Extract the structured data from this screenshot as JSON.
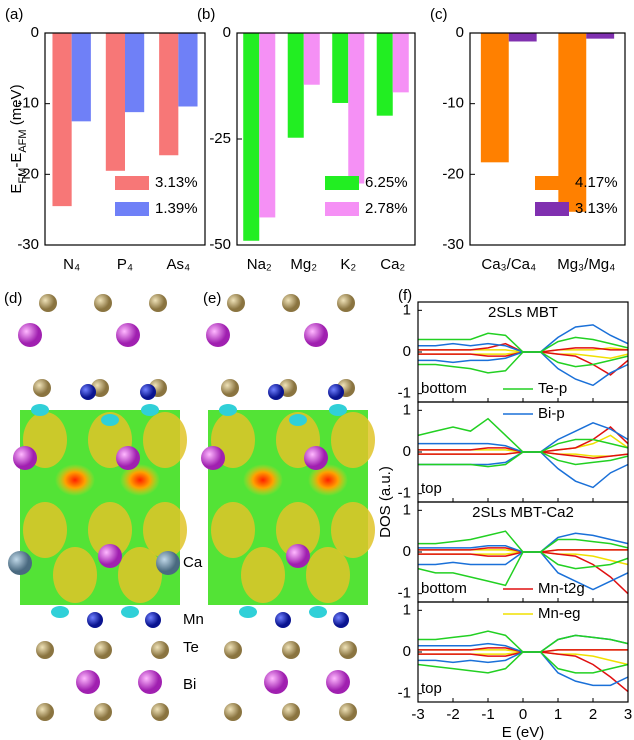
{
  "chart_data": [
    {
      "type": "bar",
      "panel_label": "(a)",
      "y_label": [
        {
          "text": "E"
        },
        {
          "text": "FM",
          "sub": true
        },
        {
          "text": "-E"
        },
        {
          "text": "AFM",
          "sub": true
        },
        {
          "text": " (meV)"
        }
      ],
      "categories": [
        "N₄",
        "P₄",
        "As₄"
      ],
      "series": [
        {
          "name": "3.13%",
          "color": "#f77777",
          "values": [
            -24.5,
            -19.5,
            -17.3
          ]
        },
        {
          "name": "1.39%",
          "color": "#6f80f7",
          "values": [
            -12.5,
            -11.2,
            -10.4
          ]
        }
      ],
      "ylim": [
        -30,
        0
      ],
      "yticks": [
        0,
        -10,
        -20,
        -30
      ]
    },
    {
      "type": "bar",
      "panel_label": "(b)",
      "categories": [
        "Na₂",
        "Mg₂",
        "K₂",
        "Ca₂"
      ],
      "series": [
        {
          "name": "6.25%",
          "color": "#22ee22",
          "values": [
            -49,
            -24.7,
            -16.5,
            -19.5
          ]
        },
        {
          "name": "2.78%",
          "color": "#f590f5",
          "values": [
            -43.5,
            -12.2,
            -35.5,
            -14
          ]
        }
      ],
      "ylim": [
        -50,
        0
      ],
      "yticks": [
        0,
        -25,
        -50
      ]
    },
    {
      "type": "bar",
      "panel_label": "(c)",
      "categories": [
        "Ca₃/Ca₄",
        "Mg₃/Mg₄"
      ],
      "series": [
        {
          "name": "4.17%",
          "color": "#ff8000",
          "values": [
            -18.3,
            -25.3
          ]
        },
        {
          "name": "3.13%",
          "color": "#8030b0",
          "values": [
            -1.2,
            -0.8
          ]
        }
      ],
      "ylim": [
        -30,
        0
      ],
      "yticks": [
        0,
        -10,
        -20,
        -30
      ]
    },
    {
      "type": "dos",
      "panel_label": "(f)",
      "x_label": "E (eV)",
      "y_label": "DOS (a.u.)",
      "x": [
        -3,
        -2.5,
        -2,
        -1.5,
        -1,
        -0.5,
        0,
        0.5,
        1,
        1.5,
        2,
        2.5,
        3
      ],
      "xlim": [
        -3,
        3
      ],
      "xticks": [
        -3,
        -2,
        -1,
        0,
        1,
        2,
        3
      ],
      "ylim": [
        -1.2,
        1.2
      ],
      "yticks": [
        1,
        0,
        -1
      ],
      "series": [
        {
          "name": "Te-p",
          "color": "#22d022"
        },
        {
          "name": "Bi-p",
          "color": "#1a70d8"
        },
        {
          "name": "Mn-t2g",
          "color": "#e01010"
        },
        {
          "name": "Mn-eg",
          "color": "#f0e000"
        }
      ],
      "panels": [
        {
          "title": "2SLs MBT",
          "position": "bottom",
          "series": [
            {
              "up": [
                0.3,
                0.3,
                0.3,
                0.3,
                0.45,
                0.4,
                0,
                0,
                0.25,
                0.35,
                0.3,
                0.2,
                0.1
              ],
              "down": [
                -0.3,
                -0.3,
                -0.35,
                -0.4,
                -0.5,
                -0.45,
                0,
                0,
                -0.25,
                -0.35,
                -0.3,
                -0.2,
                -0.1
              ]
            },
            {
              "up": [
                0.15,
                0.15,
                0.2,
                0.15,
                0.2,
                0.15,
                0,
                0,
                0.35,
                0.6,
                0.65,
                0.4,
                0.2
              ],
              "down": [
                -0.2,
                -0.2,
                -0.25,
                -0.2,
                -0.2,
                -0.15,
                0,
                0,
                -0.4,
                -0.65,
                -0.8,
                -0.5,
                -0.3
              ]
            },
            {
              "up": [
                0.05,
                0.05,
                0.05,
                0.05,
                0.1,
                0.2,
                0,
                0,
                0.05,
                0.1,
                0.1,
                0.05,
                0.05
              ],
              "down": [
                -0.05,
                -0.05,
                -0.05,
                -0.05,
                -0.1,
                -0.1,
                0,
                0,
                -0.05,
                -0.1,
                -0.3,
                -0.55,
                -0.2
              ]
            },
            {
              "up": [
                0.05,
                0.05,
                0.05,
                0.05,
                0.05,
                0.05,
                0,
                0,
                0.05,
                0.05,
                0.05,
                0.1,
                0.05
              ],
              "down": [
                -0.05,
                -0.05,
                -0.05,
                -0.05,
                -0.05,
                -0.05,
                0,
                0,
                -0.05,
                -0.05,
                -0.1,
                -0.15,
                -0.05
              ]
            }
          ]
        },
        {
          "position": "top",
          "series": [
            {
              "up": [
                0.4,
                0.5,
                0.6,
                0.5,
                0.8,
                0.4,
                0,
                0,
                0.2,
                0.3,
                0.3,
                0.2,
                0.1
              ],
              "down": [
                -0.3,
                -0.3,
                -0.3,
                -0.3,
                -0.35,
                -0.3,
                0,
                0,
                -0.2,
                -0.3,
                -0.25,
                -0.2,
                -0.1
              ]
            },
            {
              "up": [
                0.2,
                0.2,
                0.2,
                0.2,
                0.2,
                0.15,
                0,
                0,
                0.3,
                0.5,
                0.7,
                0.55,
                0.3
              ],
              "down": [
                -0.3,
                -0.3,
                -0.3,
                -0.3,
                -0.3,
                -0.25,
                0,
                0,
                -0.4,
                -0.7,
                -0.85,
                -0.5,
                -0.3
              ]
            },
            {
              "up": [
                0.05,
                0.05,
                0.05,
                0.05,
                0.1,
                0.1,
                0,
                0,
                0.05,
                0.1,
                0.3,
                0.6,
                0.2
              ],
              "down": [
                -0.05,
                -0.05,
                -0.05,
                -0.05,
                -0.05,
                -0.05,
                0,
                0,
                -0.05,
                -0.1,
                -0.15,
                -0.1,
                -0.05
              ]
            },
            {
              "up": [
                0.05,
                0.05,
                0.05,
                0.05,
                0.05,
                0.05,
                0,
                0,
                0.05,
                0.1,
                0.2,
                0.4,
                0.1
              ],
              "down": [
                -0.05,
                -0.05,
                -0.05,
                -0.05,
                -0.05,
                -0.05,
                0,
                0,
                -0.05,
                -0.05,
                -0.1,
                -0.1,
                -0.05
              ]
            }
          ]
        },
        {
          "title": "2SLs MBT-Ca2",
          "position": "bottom",
          "series": [
            {
              "up": [
                0.2,
                0.2,
                0.25,
                0.3,
                0.4,
                0.5,
                0,
                0,
                0.3,
                0.3,
                0.25,
                0.2,
                0.1
              ],
              "down": [
                -0.4,
                -0.5,
                -0.5,
                -0.6,
                -0.7,
                -0.8,
                0,
                0,
                -0.3,
                -0.4,
                -0.35,
                -0.3,
                -0.15
              ]
            },
            {
              "up": [
                0.1,
                0.1,
                0.1,
                0.1,
                0.15,
                0.15,
                0,
                0,
                0.35,
                0.45,
                0.4,
                0.3,
                0.2
              ],
              "down": [
                -0.3,
                -0.3,
                -0.25,
                -0.3,
                -0.3,
                -0.3,
                0,
                0,
                -0.5,
                -0.7,
                -0.9,
                -0.7,
                -0.5
              ]
            },
            {
              "up": [
                0.05,
                0.05,
                0.05,
                0.05,
                0.1,
                0.1,
                0,
                0,
                0.05,
                0.05,
                0.05,
                0.05,
                0.05
              ],
              "down": [
                -0.05,
                -0.05,
                -0.05,
                -0.05,
                -0.1,
                -0.1,
                0,
                0,
                -0.05,
                -0.1,
                -0.3,
                -0.6,
                -1
              ]
            },
            {
              "up": [
                0.05,
                0.05,
                0.05,
                0.05,
                0.05,
                0.05,
                0,
                0,
                0.05,
                0.05,
                0.05,
                0.05,
                0.05
              ],
              "down": [
                -0.05,
                -0.05,
                -0.05,
                -0.05,
                -0.05,
                -0.05,
                0,
                0,
                -0.05,
                -0.05,
                -0.1,
                -0.2,
                -0.3
              ]
            }
          ]
        },
        {
          "position": "top",
          "series": [
            {
              "up": [
                0.3,
                0.3,
                0.35,
                0.4,
                0.5,
                0.4,
                0,
                0,
                0.3,
                0.4,
                0.35,
                0.3,
                0.2
              ],
              "down": [
                -0.3,
                -0.35,
                -0.4,
                -0.45,
                -0.5,
                -0.4,
                0,
                0,
                -0.4,
                -0.5,
                -0.5,
                -0.4,
                -0.3
              ]
            },
            {
              "up": [
                0.15,
                0.15,
                0.15,
                0.15,
                0.2,
                0.15,
                0,
                0,
                0.3,
                0.4,
                0.35,
                0.3,
                0.2
              ],
              "down": [
                -0.2,
                -0.2,
                -0.25,
                -0.2,
                -0.25,
                -0.2,
                0,
                0,
                -0.5,
                -0.7,
                -0.8,
                -0.8,
                -0.6
              ]
            },
            {
              "up": [
                0.05,
                0.05,
                0.05,
                0.05,
                0.1,
                0.1,
                0,
                0,
                0.05,
                0.05,
                0.05,
                0.05,
                0.05
              ],
              "down": [
                -0.05,
                -0.05,
                -0.05,
                -0.05,
                -0.1,
                -0.1,
                0,
                0,
                -0.05,
                -0.1,
                -0.3,
                -0.6,
                -0.95
              ]
            },
            {
              "up": [
                0.05,
                0.05,
                0.05,
                0.05,
                0.05,
                0.05,
                0,
                0,
                0.05,
                0.05,
                0.05,
                0.05,
                0.05
              ],
              "down": [
                -0.05,
                -0.05,
                -0.05,
                -0.05,
                -0.05,
                -0.05,
                0,
                0,
                -0.05,
                -0.05,
                -0.1,
                -0.2,
                -0.3
              ]
            }
          ]
        }
      ]
    }
  ],
  "structure_panels": {
    "labels": [
      "(d)",
      "(e)"
    ],
    "species": {
      "ca": "Ca",
      "mn": "Mn",
      "te": "Te",
      "bi": "Bi"
    }
  }
}
